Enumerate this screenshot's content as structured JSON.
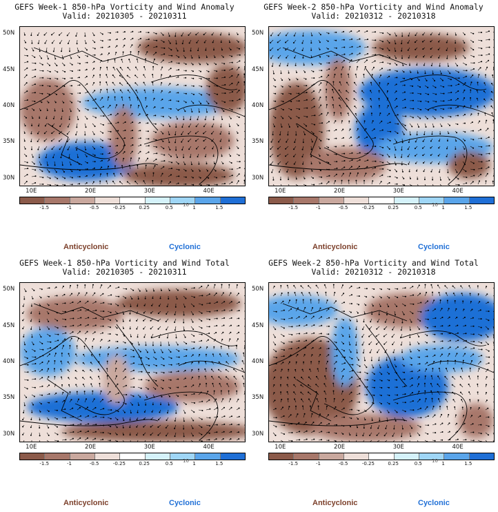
{
  "panels": [
    {
      "title": "GEFS Week-1 850-hPa Vorticity and Wind Anomaly",
      "valid": "Valid: 20210305 - 20210311",
      "lat_labels": [
        "50N",
        "45N",
        "40N",
        "35N",
        "30N"
      ],
      "lon_labels": [
        "10E",
        "20E",
        "30E",
        "40E"
      ],
      "colorbar_labels": [
        "-1.5",
        "-1",
        "-0.5",
        "-0.25",
        "0.25",
        "0.5",
        "1",
        "1.5"
      ],
      "scale_label": "10",
      "anticyclonic": "Anticyclonic",
      "cyclonic": "Cyclonic"
    },
    {
      "title": "GEFS Week-2 850-hPa Vorticity and Wind Anomaly",
      "valid": "Valid: 20210312 - 20210318",
      "lat_labels": [
        "50N",
        "45N",
        "40N",
        "35N",
        "30N"
      ],
      "lon_labels": [
        "10E",
        "20E",
        "30E",
        "40E"
      ],
      "colorbar_labels": [
        "-1.5",
        "-1",
        "-0.5",
        "-0.25",
        "0.25",
        "0.5",
        "1",
        "1.5"
      ],
      "scale_label": "10",
      "anticyclonic": "Anticyclonic",
      "cyclonic": "Cyclonic"
    },
    {
      "title": "GEFS Week-1 850-hPa Vorticity and Wind Total",
      "valid": "Valid: 20210305 - 20210311",
      "lat_labels": [
        "50N",
        "45N",
        "40N",
        "35N",
        "30N"
      ],
      "lon_labels": [
        "10E",
        "20E",
        "30E",
        "40E"
      ],
      "colorbar_labels": [
        "-1.5",
        "-1",
        "-0.5",
        "-0.25",
        "0.25",
        "0.5",
        "1",
        "1.5"
      ],
      "scale_label": "10",
      "anticyclonic": "Anticyclonic",
      "cyclonic": "Cyclonic"
    },
    {
      "title": "GEFS Week-2 850-hPa Vorticity and Wind Total",
      "valid": "Valid: 20210312 - 20210318",
      "lat_labels": [
        "50N",
        "45N",
        "40N",
        "35N",
        "30N"
      ],
      "lon_labels": [
        "10E",
        "20E",
        "30E",
        "40E"
      ],
      "colorbar_labels": [
        "-1.5",
        "-1",
        "-0.5",
        "-0.25",
        "0.25",
        "0.5",
        "1",
        "1.5"
      ],
      "scale_label": "10",
      "anticyclonic": "Anticyclonic",
      "cyclonic": "Cyclonic"
    }
  ],
  "colors": {
    "scale": [
      "#8b5a4a",
      "#a7776a",
      "#c9a89e",
      "#eedfd9",
      "#ffffff",
      "#d5f2fa",
      "#9fd6f6",
      "#5aa5ea",
      "#1f6fd6"
    ],
    "anticyclonic_text": "#7b3f2a",
    "cyclonic_text": "#1f6fd6",
    "outline": "#000000"
  }
}
